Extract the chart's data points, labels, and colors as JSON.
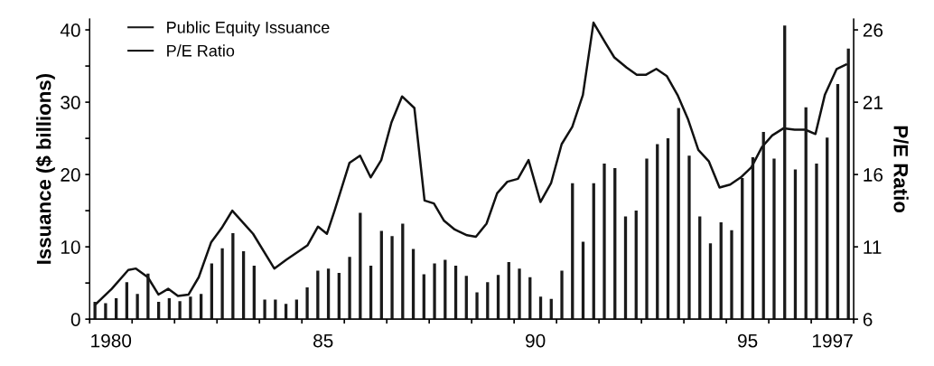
{
  "chart_data": {
    "type": "bar",
    "ylabel": "Issuance ($ billions)",
    "y2label": "P/E Ratio",
    "xlim": [
      1979.5,
      1997.5
    ],
    "xticks": [
      {
        "value": 1979.5,
        "label": null
      },
      {
        "value": 1980.5,
        "label": null
      },
      {
        "value": 1981.5,
        "label": null
      },
      {
        "value": 1982.5,
        "label": null
      },
      {
        "value": 1983.5,
        "label": null
      },
      {
        "value": 1984.5,
        "label": null
      },
      {
        "value": 1985.5,
        "label": null
      },
      {
        "value": 1986.5,
        "label": null
      },
      {
        "value": 1987.5,
        "label": null
      },
      {
        "value": 1988.5,
        "label": null
      },
      {
        "value": 1989.5,
        "label": null
      },
      {
        "value": 1990.5,
        "label": null
      },
      {
        "value": 1991.5,
        "label": null
      },
      {
        "value": 1992.5,
        "label": null
      },
      {
        "value": 1993.5,
        "label": null
      },
      {
        "value": 1994.5,
        "label": null
      },
      {
        "value": 1995.5,
        "label": null
      },
      {
        "value": 1996.5,
        "label": null
      },
      {
        "value": 1997.5,
        "label": null
      },
      {
        "value": 1980,
        "label": "1980"
      },
      {
        "value": 1985,
        "label": "85"
      },
      {
        "value": 1990,
        "label": "90"
      },
      {
        "value": 1995,
        "label": "95"
      },
      {
        "value": 1997,
        "label": "1997"
      }
    ],
    "ylim": [
      0,
      41.5
    ],
    "yticks": [
      0,
      {
        "value": 5,
        "label": null
      },
      10,
      {
        "value": 15,
        "label": null
      },
      20,
      {
        "value": 25,
        "label": null
      },
      30,
      {
        "value": 35,
        "label": null
      },
      40
    ],
    "y2lim": [
      6,
      26.75
    ],
    "y2ticks": [
      6,
      11,
      16,
      21,
      26
    ],
    "grid": false,
    "legend": "top left",
    "series": [
      {
        "name": "Public Equity Issuance",
        "color": "#1a1a1a",
        "x": [
          1979.625,
          1979.875,
          1980.125,
          1980.375,
          1980.625,
          1980.875,
          1981.125,
          1981.375,
          1981.625,
          1981.875,
          1982.125,
          1982.375,
          1982.625,
          1982.875,
          1983.125,
          1983.375,
          1983.625,
          1983.875,
          1984.125,
          1984.375,
          1984.625,
          1984.875,
          1985.125,
          1985.375,
          1985.625,
          1985.875,
          1986.125,
          1986.375,
          1986.625,
          1986.875,
          1987.125,
          1987.375,
          1987.625,
          1987.875,
          1988.125,
          1988.375,
          1988.625,
          1988.875,
          1989.125,
          1989.375,
          1989.625,
          1989.875,
          1990.125,
          1990.375,
          1990.625,
          1990.875,
          1991.125,
          1991.375,
          1991.625,
          1991.875,
          1992.125,
          1992.375,
          1992.625,
          1992.875,
          1993.125,
          1993.375,
          1993.625,
          1993.875,
          1994.125,
          1994.375,
          1994.625,
          1994.875,
          1995.125,
          1995.375,
          1995.625,
          1995.875,
          1996.125,
          1996.375,
          1996.625,
          1996.875,
          1997.125,
          1997.375
        ],
        "values": [
          2.4,
          2.2,
          2.9,
          5.1,
          3.5,
          6.3,
          2.4,
          2.9,
          2.5,
          3.1,
          3.5,
          7.7,
          9.8,
          11.9,
          9.4,
          7.4,
          2.7,
          2.7,
          2.1,
          2.7,
          4.4,
          6.7,
          7.0,
          6.4,
          8.6,
          14.7,
          7.4,
          12.2,
          11.5,
          13.2,
          9.7,
          6.2,
          7.7,
          8.2,
          7.4,
          6.0,
          3.7,
          5.1,
          6.1,
          7.9,
          7.0,
          5.8,
          3.1,
          2.8,
          6.7,
          18.8,
          10.7,
          18.8,
          21.5,
          20.9,
          14.2,
          15.0,
          22.2,
          24.2,
          25.0,
          29.2,
          22.6,
          14.2,
          10.5,
          13.4,
          12.3,
          19.5,
          22.4,
          25.9,
          22.2,
          40.6,
          20.7,
          29.3,
          21.5,
          25.1,
          32.5,
          37.4
        ]
      },
      {
        "name": "P/E Ratio",
        "type": "line",
        "axis": "y2",
        "color": "#111111",
        "marker": "none",
        "line_style": "solid",
        "x": [
          1979.63,
          1980.02,
          1980.41,
          1980.59,
          1980.87,
          1981.12,
          1981.35,
          1981.58,
          1981.83,
          1982.07,
          1982.36,
          1982.61,
          1982.86,
          1983.35,
          1983.85,
          1984.13,
          1984.63,
          1984.88,
          1985.09,
          1985.27,
          1985.62,
          1985.87,
          1986.12,
          1986.37,
          1986.61,
          1986.86,
          1987.15,
          1987.39,
          1987.61,
          1987.85,
          1988.1,
          1988.39,
          1988.6,
          1988.85,
          1989.1,
          1989.34,
          1989.59,
          1989.84,
          1990.12,
          1990.37,
          1990.62,
          1990.87,
          1991.12,
          1991.37,
          1991.65,
          1991.86,
          1992.15,
          1992.39,
          1992.61,
          1992.85,
          1993.1,
          1993.35,
          1993.6,
          1993.84,
          1994.09,
          1994.34,
          1994.59,
          1994.84,
          1995.09,
          1995.34,
          1995.58,
          1995.85,
          1996.11,
          1996.36,
          1996.6,
          1996.82,
          1997.1,
          1997.32
        ],
        "values": [
          7.0,
          8.1,
          9.4,
          9.5,
          8.9,
          7.7,
          8.1,
          7.6,
          7.7,
          8.9,
          11.3,
          12.3,
          13.5,
          11.9,
          9.5,
          10.1,
          11.1,
          12.4,
          11.9,
          13.5,
          16.8,
          17.3,
          15.8,
          17.0,
          19.6,
          21.4,
          20.6,
          14.2,
          14.0,
          12.8,
          12.2,
          11.8,
          11.7,
          12.6,
          14.7,
          15.5,
          15.7,
          17.0,
          14.1,
          15.4,
          18.1,
          19.3,
          21.5,
          26.5,
          25.1,
          24.1,
          23.4,
          22.9,
          22.9,
          23.3,
          22.8,
          21.5,
          19.8,
          17.7,
          16.9,
          15.1,
          15.3,
          15.8,
          16.5,
          17.9,
          18.7,
          19.2,
          19.1,
          19.1,
          18.8,
          21.5,
          23.3,
          23.6
        ]
      }
    ]
  }
}
